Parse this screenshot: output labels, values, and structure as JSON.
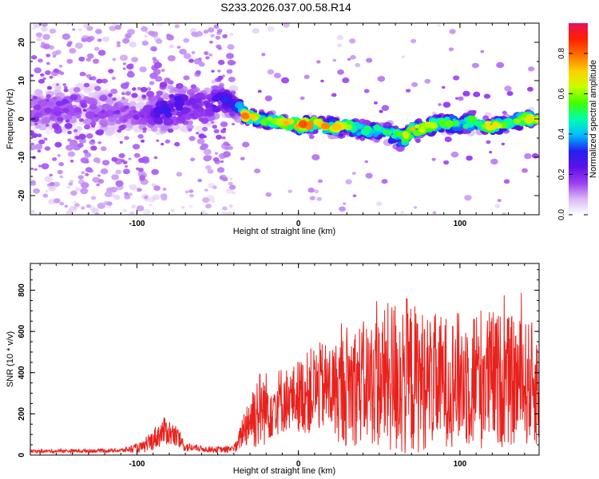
{
  "figure_title": "S233.2026.037.00.58.R14",
  "colors": {
    "snr_line": "#e8211d",
    "axis": "#000000",
    "background": "#ffffff"
  },
  "chart_data": [
    {
      "type": "heatmap",
      "name": "spectrogram",
      "xlabel": "Height of straight line (km)",
      "ylabel": "Frequency (Hz)",
      "xlim": [
        -166,
        149
      ],
      "ylim": [
        -25,
        25
      ],
      "xticks": [
        -100,
        0,
        100
      ],
      "yticks": [
        -20,
        -10,
        0,
        10,
        20
      ],
      "colorbar": {
        "label": "Normalized spectral amplitude",
        "range": [
          0,
          0.95
        ],
        "ticks": [
          0.0,
          0.2,
          0.4,
          0.6,
          0.8
        ],
        "colormap": [
          "#ffffff",
          "#d9b8f5",
          "#9b3df0",
          "#5c10e8",
          "#2222f0",
          "#00bfff",
          "#00ffaa",
          "#40ff00",
          "#c8ff00",
          "#ffd000",
          "#ff7000",
          "#ff2000",
          "#e8105a"
        ]
      },
      "ridge": {
        "x": [
          -166,
          -140,
          -120,
          -100,
          -85,
          -75,
          -65,
          -55,
          -45,
          -38,
          -32,
          -25,
          -15,
          -5,
          0,
          10,
          20,
          30,
          40,
          50,
          60,
          65,
          70,
          80,
          90,
          100,
          110,
          120,
          130,
          140,
          149
        ],
        "frequency": [
          2,
          3,
          2,
          1,
          2,
          4,
          3,
          4,
          5,
          3,
          0.5,
          0,
          -0.5,
          -1,
          -1.5,
          -1.5,
          -2,
          -2,
          -3,
          -3,
          -4,
          -5,
          -3,
          -2,
          -1,
          -1.5,
          -0.5,
          -2,
          -1,
          0,
          0
        ],
        "peak_amplitude": [
          0.15,
          0.15,
          0.15,
          0.15,
          0.25,
          0.3,
          0.2,
          0.2,
          0.3,
          0.3,
          0.85,
          0.6,
          0.6,
          0.75,
          0.8,
          0.75,
          0.7,
          0.6,
          0.5,
          0.5,
          0.5,
          0.6,
          0.7,
          0.6,
          0.55,
          0.5,
          0.6,
          0.7,
          0.5,
          0.6,
          0.7
        ],
        "half_width": [
          4,
          4,
          4,
          3,
          4,
          4,
          4,
          4,
          3,
          2,
          1.2,
          1.2,
          1.3,
          1.3,
          1.5,
          1.5,
          1.5,
          1.5,
          1.5,
          1.5,
          2,
          2,
          1.5,
          1.5,
          1.5,
          1.5,
          1.5,
          1.5,
          1.5,
          1.5,
          1.2
        ]
      }
    },
    {
      "type": "line",
      "name": "snr",
      "xlabel": "Height of straight line (km)",
      "ylabel": "SNR (10 * v/v)",
      "xlim": [
        -166,
        149
      ],
      "ylim": [
        0,
        930
      ],
      "xticks": [
        -100,
        0,
        100
      ],
      "yticks": [
        0,
        200,
        400,
        600,
        800
      ],
      "envelope": {
        "x": [
          -166,
          -110,
          -95,
          -88,
          -82,
          -76,
          -70,
          -60,
          -45,
          -38,
          -34,
          -30,
          -25,
          -20,
          -15,
          -10,
          -5,
          0,
          5,
          10,
          15,
          20,
          25,
          30,
          40,
          50,
          60,
          64,
          70,
          80,
          90,
          100,
          110,
          120,
          130,
          140,
          149
        ],
        "mean": [
          18,
          22,
          40,
          90,
          120,
          90,
          40,
          30,
          25,
          40,
          130,
          180,
          220,
          230,
          250,
          270,
          270,
          290,
          300,
          320,
          330,
          320,
          310,
          340,
          350,
          360,
          380,
          390,
          370,
          360,
          360,
          370,
          380,
          370,
          360,
          350,
          340
        ],
        "amplitude": [
          8,
          10,
          30,
          60,
          70,
          60,
          25,
          15,
          15,
          30,
          90,
          150,
          200,
          180,
          160,
          170,
          150,
          180,
          200,
          220,
          220,
          230,
          250,
          300,
          300,
          330,
          400,
          420,
          380,
          330,
          320,
          330,
          360,
          340,
          320,
          310,
          300
        ]
      }
    }
  ]
}
